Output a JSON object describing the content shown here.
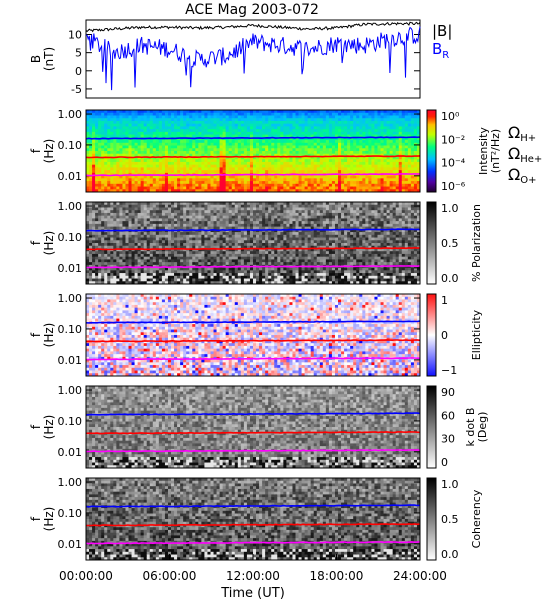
{
  "title": "ACE Mag 2003-072",
  "x_axis": {
    "label": "Time (UT)",
    "ticks": [
      "00:00:00",
      "06:00:00",
      "12:00:00",
      "18:00:00",
      "24:00:00"
    ],
    "range_hours": [
      0,
      24
    ]
  },
  "gyro_lines": {
    "H": {
      "label_main": "Ω",
      "label_sub": "H+",
      "color": "#0000ff"
    },
    "He": {
      "label_main": "Ω",
      "label_sub": "He+",
      "color": "#ff0000"
    },
    "O": {
      "label_main": "Ω",
      "label_sub": "O+",
      "color": "#ff00ff"
    }
  },
  "chart_data": [
    {
      "type": "line",
      "panel": "magnetic-field",
      "ylabel_top": "B",
      "ylabel_bottom": "(nT)",
      "ylim": [
        -7.5,
        14
      ],
      "yticks": [
        "10",
        "5",
        "0",
        "-5"
      ],
      "ytick_values": [
        10,
        5,
        0,
        -5
      ],
      "series": [
        {
          "name": "|B|",
          "color": "#000000",
          "x": [
            0,
            2,
            4,
            6,
            8,
            10,
            12,
            14,
            16,
            18,
            20,
            22,
            24
          ],
          "y": [
            11.0,
            11.5,
            12.0,
            12.0,
            11.8,
            12.0,
            12.5,
            12.0,
            11.5,
            11.8,
            12.8,
            13.0,
            13.0
          ]
        },
        {
          "name": "B",
          "sub": "R",
          "color": "#0000ff",
          "x": [
            0,
            2,
            4,
            6,
            8,
            10,
            12,
            14,
            16,
            18,
            20,
            22,
            24
          ],
          "y": [
            9.0,
            5.0,
            7.0,
            6.0,
            3.0,
            4.0,
            8.0,
            7.0,
            6.0,
            7.5,
            7.0,
            9.0,
            10.0
          ]
        }
      ]
    },
    {
      "type": "heatmap",
      "panel": "intensity",
      "ylabel_top": "f",
      "ylabel_bottom": "(Hz)",
      "yticks": [
        "1.00",
        "0.10",
        "0.01"
      ],
      "scale": "log",
      "colorbar": {
        "label": "Intensity",
        "unit": "(nT²/Hz)",
        "ticks": [
          "10⁰",
          "10⁻²",
          "10⁻⁴",
          "10⁻⁶"
        ]
      },
      "gyro_freq_hz": {
        "H": 0.17,
        "He": 0.042,
        "O": 0.011
      }
    },
    {
      "type": "heatmap",
      "panel": "polarization",
      "ylabel_top": "f",
      "ylabel_bottom": "(Hz)",
      "yticks": [
        "1.00",
        "0.10",
        "0.01"
      ],
      "scale": "log",
      "colorbar": {
        "label": "% Polarization",
        "ticks": [
          "1.0",
          "0.5",
          "0.0"
        ]
      },
      "gyro_freq_hz": {
        "H": 0.17,
        "He": 0.042,
        "O": 0.011
      }
    },
    {
      "type": "heatmap",
      "panel": "ellipticity",
      "ylabel_top": "f",
      "ylabel_bottom": "(Hz)",
      "yticks": [
        "1.00",
        "0.10",
        "0.01"
      ],
      "scale": "log",
      "colorbar": {
        "label": "Ellipticity",
        "ticks": [
          "1",
          "0",
          "−1"
        ]
      },
      "gyro_freq_hz": {
        "H": 0.17,
        "He": 0.042,
        "O": 0.011
      }
    },
    {
      "type": "heatmap",
      "panel": "k-dot-b",
      "ylabel_top": "f",
      "ylabel_bottom": "(Hz)",
      "yticks": [
        "1.00",
        "0.10",
        "0.01"
      ],
      "scale": "log",
      "colorbar": {
        "label": "k dot B",
        "unit": "(Deg)",
        "ticks": [
          "90",
          "60",
          "30",
          "0"
        ]
      },
      "gyro_freq_hz": {
        "H": 0.17,
        "He": 0.042,
        "O": 0.011
      }
    },
    {
      "type": "heatmap",
      "panel": "coherency",
      "ylabel_top": "f",
      "ylabel_bottom": "(Hz)",
      "yticks": [
        "1.00",
        "0.10",
        "0.01"
      ],
      "scale": "log",
      "colorbar": {
        "label": "Coherency",
        "ticks": [
          "1.0",
          "0.5",
          "0.0"
        ]
      },
      "gyro_freq_hz": {
        "H": 0.17,
        "He": 0.042,
        "O": 0.011
      }
    }
  ]
}
